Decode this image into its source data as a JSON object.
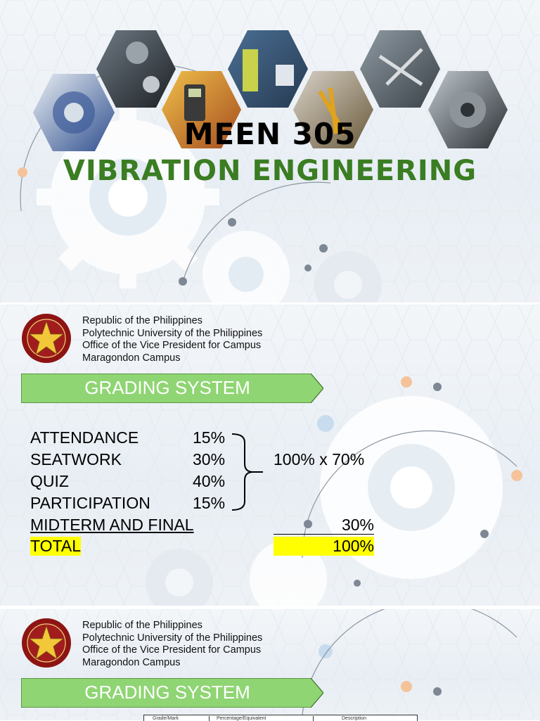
{
  "slide1": {
    "title_code": "MEEN 305",
    "title_name": "VIBRATION ENGINEERING",
    "colors": {
      "title_green": "#3a7d22"
    }
  },
  "header": {
    "lines": [
      "Republic of the Philippines",
      "Polytechnic University of the Philippines",
      "Office of the Vice President for Campus",
      "Maragondon Campus"
    ]
  },
  "slide2": {
    "banner": "GRADING SYSTEM",
    "rows": [
      {
        "label": "ATTENDANCE",
        "percent": "15%"
      },
      {
        "label": "SEATWORK",
        "percent": "30%"
      },
      {
        "label": "QUIZ",
        "percent": "40%"
      },
      {
        "label": "PARTICIPATION",
        "percent": "15%"
      }
    ],
    "brace_result": "100% x 70%",
    "midterm_label": "MIDTERM AND FINAL",
    "midterm_percent": "30%",
    "total_label": "TOTAL",
    "total_percent": "100%",
    "colors": {
      "banner_green": "#8fd573",
      "highlight": "#ffff00"
    }
  },
  "slide3": {
    "banner": "GRADING SYSTEM",
    "table_headers": [
      "Grade/Mark",
      "Percentage/Equivalent",
      "Description"
    ]
  }
}
